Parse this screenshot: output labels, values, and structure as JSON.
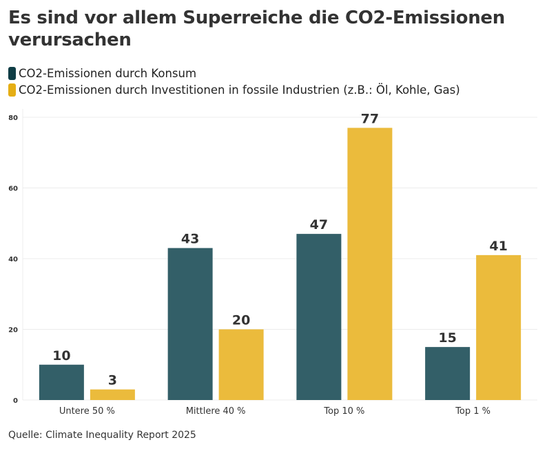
{
  "title": "Es sind vor allem Superreiche die CO2-Emissionen verursachen",
  "source": "Quelle: Climate Inequality Report 2025",
  "chart_data": {
    "type": "bar",
    "title": "Es sind vor allem Superreiche die CO2-Emissionen verursachen",
    "categories": [
      "Untere 50 %",
      "Mittlere 40 %",
      "Top 10 %",
      "Top 1 %"
    ],
    "series": [
      {
        "name": "CO2-Emissionen durch Konsum",
        "values": [
          10,
          43,
          47,
          15
        ],
        "color": "#335f68",
        "legend_color": "#0f3d45"
      },
      {
        "name": "CO2-Emissionen durch Investitionen in fossile Industrien (z.B.: Öl, Kohle, Gas)",
        "values": [
          3,
          20,
          77,
          41
        ],
        "color": "#ebbb3c",
        "legend_color": "#e5ae15"
      }
    ],
    "yticks": [
      0,
      20,
      40,
      60,
      80
    ],
    "ylim": [
      0,
      80
    ],
    "grid": true,
    "legend_placement": "top-left",
    "data_labels": true
  }
}
